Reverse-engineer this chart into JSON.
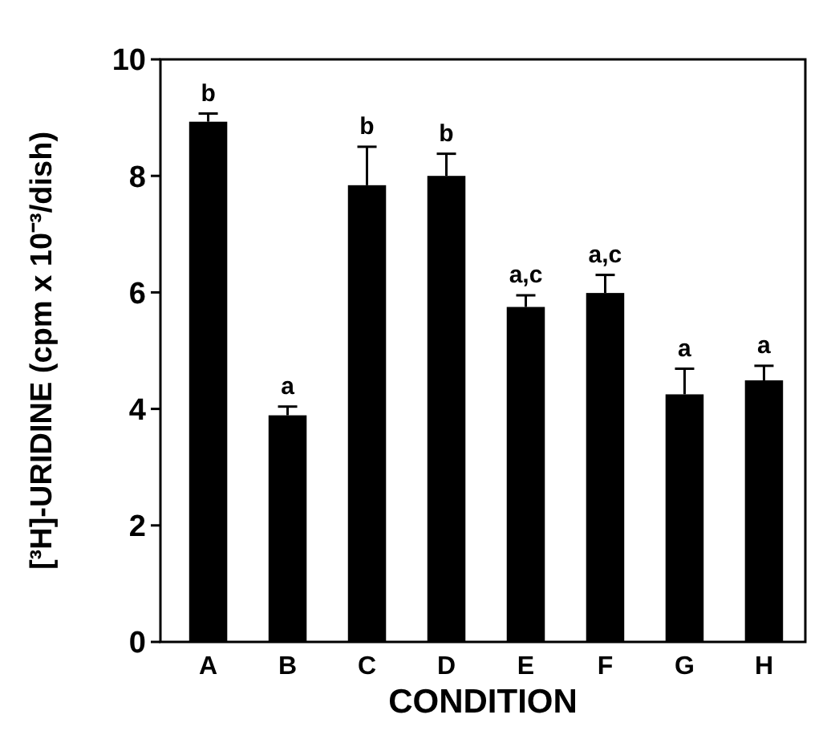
{
  "chart_data": {
    "type": "bar",
    "xlabel": "CONDITION",
    "ylabel": "[³H]-URIDINE (cpm x 10⁻³/dish)",
    "categories": [
      "A",
      "B",
      "C",
      "D",
      "E",
      "F",
      "G",
      "H"
    ],
    "values": [
      8.93,
      3.89,
      7.84,
      8.0,
      5.75,
      5.99,
      4.25,
      4.49
    ],
    "errors": [
      [
        8.93,
        9.07
      ],
      [
        3.89,
        4.04
      ],
      [
        7.84,
        8.5
      ],
      [
        8.0,
        8.38
      ],
      [
        5.75,
        5.95
      ],
      [
        5.99,
        6.3
      ],
      [
        4.25,
        4.69
      ],
      [
        4.49,
        4.74
      ]
    ],
    "color": "#000000",
    "ylim": [
      0,
      10
    ],
    "yticks": [
      0,
      2,
      4,
      6,
      8,
      10
    ],
    "grid": false,
    "annotations": [
      "b",
      "a",
      "b",
      "b",
      "a,c",
      "a,c",
      "a",
      "a"
    ]
  }
}
